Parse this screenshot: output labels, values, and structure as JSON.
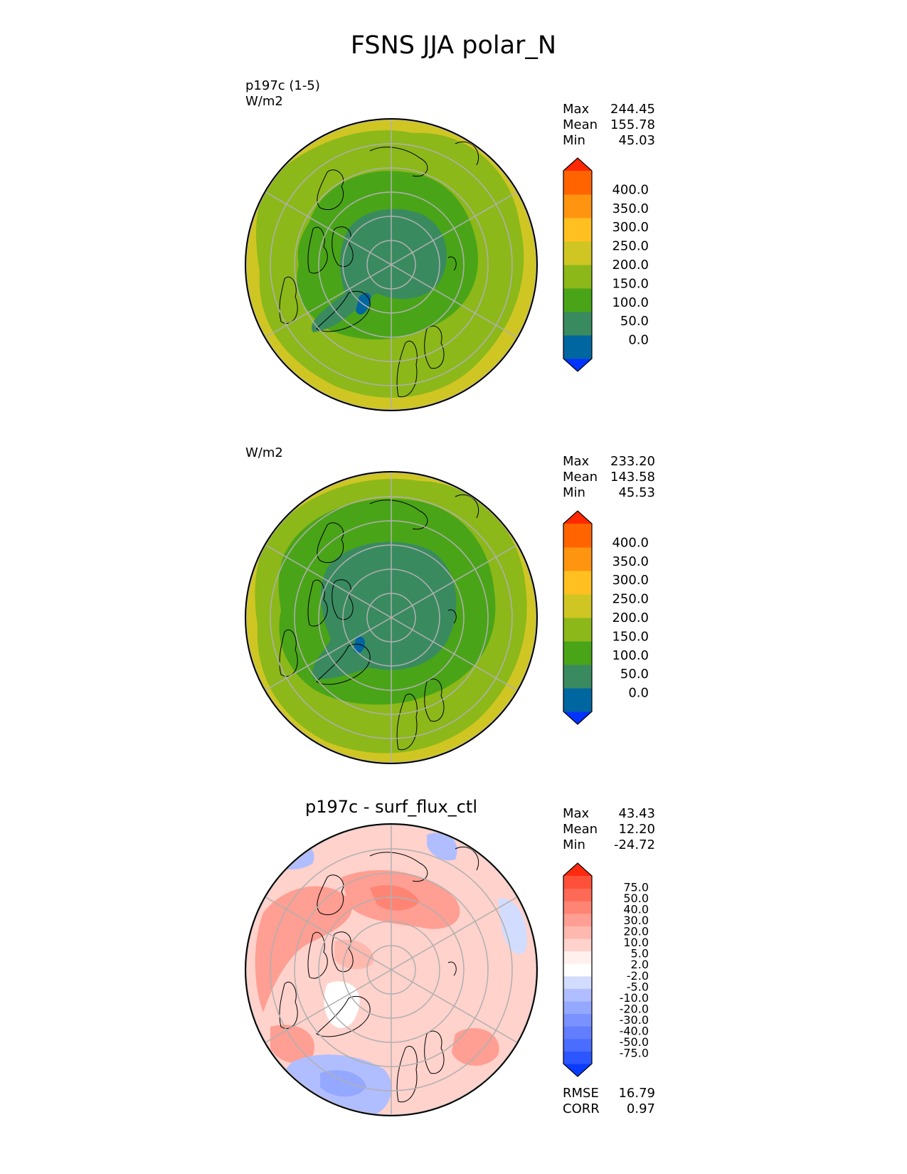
{
  "title": "FSNS JJA polar_N",
  "colors": {
    "abs_levels": [
      "#0033ff",
      "#0066a0",
      "#3a8a60",
      "#4aa418",
      "#8cb81a",
      "#cfc624",
      "#ffc020",
      "#ff9410",
      "#ff6400",
      "#ff2800"
    ],
    "diff_levels": [
      "#0a3cff",
      "#2c56ff",
      "#4a6cff",
      "#627eff",
      "#7a92ff",
      "#94a8ff",
      "#b0beff",
      "#d2dcff",
      "#ffffff",
      "#fff0ee",
      "#ffd2cc",
      "#ffb8ae",
      "#ff9e92",
      "#ff8474",
      "#ff6a56",
      "#ff503a",
      "#ff2a10"
    ]
  },
  "panels": [
    {
      "label_line1": "p197c (1-5)",
      "label_line2": "W/m2",
      "center_title": "",
      "stats": [
        {
          "name": "Max",
          "value": "244.45"
        },
        {
          "name": "Mean",
          "value": "155.78"
        },
        {
          "name": "Min",
          "value": "45.03"
        }
      ],
      "colorbar_ticks": [
        "400.0",
        "350.0",
        "300.0",
        "250.0",
        "200.0",
        "150.0",
        "100.0",
        "50.0",
        "0.0"
      ]
    },
    {
      "label_line1": "",
      "label_line2": "W/m2",
      "center_title": "",
      "stats": [
        {
          "name": "Max",
          "value": "233.20"
        },
        {
          "name": "Mean",
          "value": "143.58"
        },
        {
          "name": "Min",
          "value": "45.53"
        }
      ],
      "colorbar_ticks": [
        "400.0",
        "350.0",
        "300.0",
        "250.0",
        "200.0",
        "150.0",
        "100.0",
        "50.0",
        "0.0"
      ]
    },
    {
      "label_line1": "",
      "label_line2": "",
      "center_title": "p197c - surf_flux_ctl",
      "stats": [
        {
          "name": "Max",
          "value": "43.43"
        },
        {
          "name": "Mean",
          "value": "12.20"
        },
        {
          "name": "Min",
          "value": "-24.72"
        }
      ],
      "colorbar_ticks": [
        "75.0",
        "50.0",
        "40.0",
        "30.0",
        "20.0",
        "10.0",
        "5.0",
        "2.0",
        "-2.0",
        "-5.0",
        "-10.0",
        "-20.0",
        "-30.0",
        "-40.0",
        "-50.0",
        "-75.0"
      ],
      "metrics": [
        {
          "name": "RMSE",
          "value": "16.79"
        },
        {
          "name": "CORR",
          "value": "0.97"
        }
      ]
    }
  ],
  "chart_data": [
    {
      "type": "heatmap",
      "projection": "north polar stereographic",
      "units": "W/m2",
      "case": "p197c (1-5)",
      "stats": {
        "max": 244.45,
        "mean": 155.78,
        "min": 45.03
      },
      "levels": [
        0,
        50,
        100,
        150,
        200,
        250,
        300,
        350,
        400
      ]
    },
    {
      "type": "heatmap",
      "projection": "north polar stereographic",
      "units": "W/m2",
      "stats": {
        "max": 233.2,
        "mean": 143.58,
        "min": 45.53
      },
      "levels": [
        0,
        50,
        100,
        150,
        200,
        250,
        300,
        350,
        400
      ]
    },
    {
      "type": "heatmap",
      "projection": "north polar stereographic",
      "title": "p197c - surf_flux_ctl",
      "stats": {
        "max": 43.43,
        "mean": 12.2,
        "min": -24.72,
        "rmse": 16.79,
        "corr": 0.97
      },
      "levels": [
        -75,
        -50,
        -40,
        -30,
        -20,
        -10,
        -5,
        -2,
        2,
        5,
        10,
        20,
        30,
        40,
        50,
        75
      ]
    }
  ]
}
